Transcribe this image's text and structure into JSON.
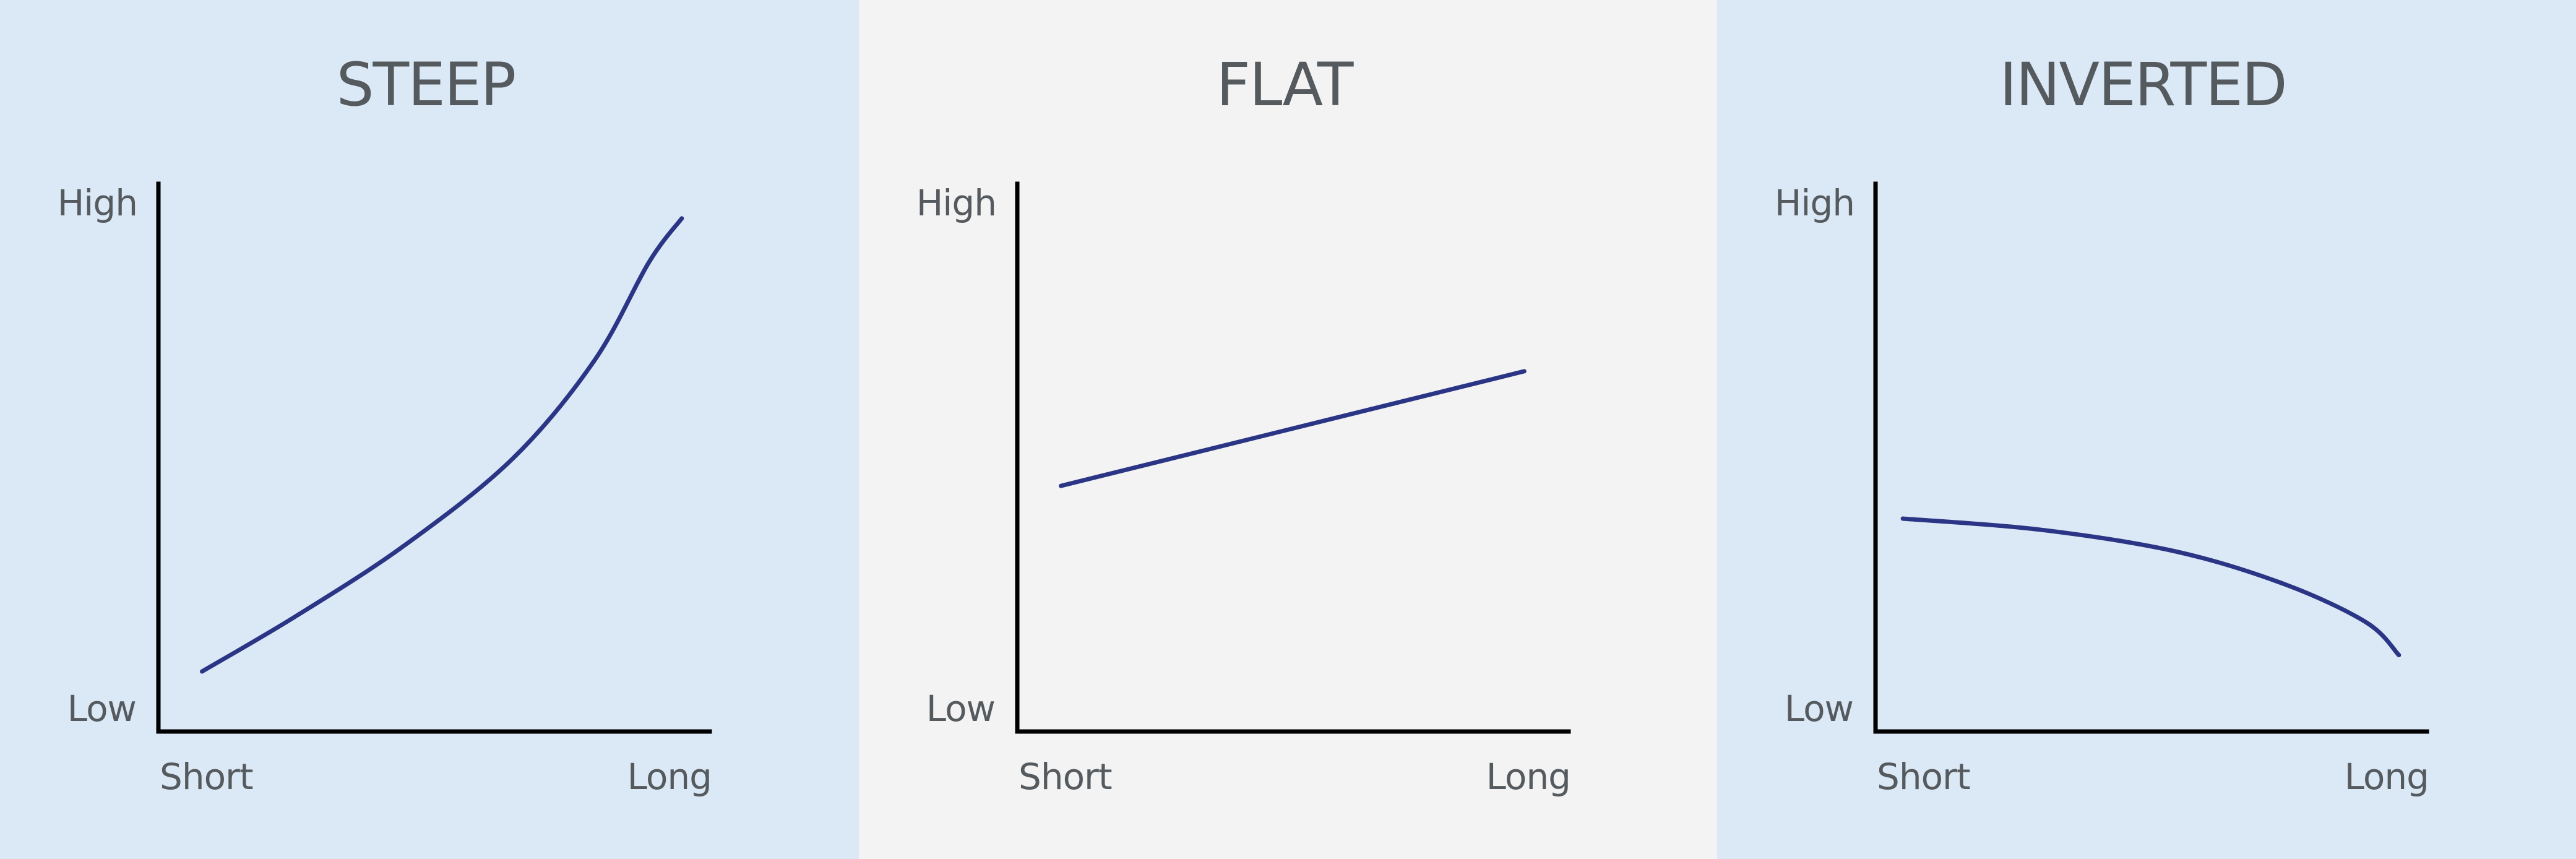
{
  "colors": {
    "panel_bg_blue": "#dbe8f5",
    "panel_bg_gray": "#f3f3f3",
    "curve": "#2b3585",
    "axis": "#000000",
    "text": "#555a5f"
  },
  "chart_data": [
    {
      "type": "line",
      "title": "STEEP",
      "background": "#dbe8f5",
      "ylim": [
        0,
        10
      ],
      "xlim": [
        0,
        10
      ],
      "y_ticks": [
        "Low",
        "High"
      ],
      "x_ticks": [
        "Short",
        "Long"
      ],
      "grid": false,
      "series": [
        {
          "x": [
            0.8,
            2.5,
            4.5,
            6.5,
            8.0,
            9.0,
            9.6
          ],
          "y": [
            1.1,
            2.1,
            3.4,
            5.0,
            6.8,
            8.6,
            9.4
          ]
        }
      ]
    },
    {
      "type": "line",
      "title": "FLAT",
      "background": "#f3f3f3",
      "ylim": [
        0,
        10
      ],
      "xlim": [
        0,
        10
      ],
      "y_ticks": [
        "Low",
        "High"
      ],
      "x_ticks": [
        "Short",
        "Long"
      ],
      "grid": false,
      "series": [
        {
          "x": [
            0.8,
            9.3
          ],
          "y": [
            4.5,
            6.6
          ]
        }
      ]
    },
    {
      "type": "line",
      "title": "INVERTED",
      "background": "#dbe8f5",
      "ylim": [
        0,
        10
      ],
      "xlim": [
        0,
        10
      ],
      "y_ticks": [
        "Low",
        "High"
      ],
      "x_ticks": [
        "Short",
        "Long"
      ],
      "grid": false,
      "series": [
        {
          "x": [
            0.5,
            3.0,
            5.5,
            7.5,
            9.0,
            9.6
          ],
          "y": [
            3.9,
            3.7,
            3.3,
            2.7,
            2.0,
            1.4
          ]
        }
      ]
    }
  ]
}
